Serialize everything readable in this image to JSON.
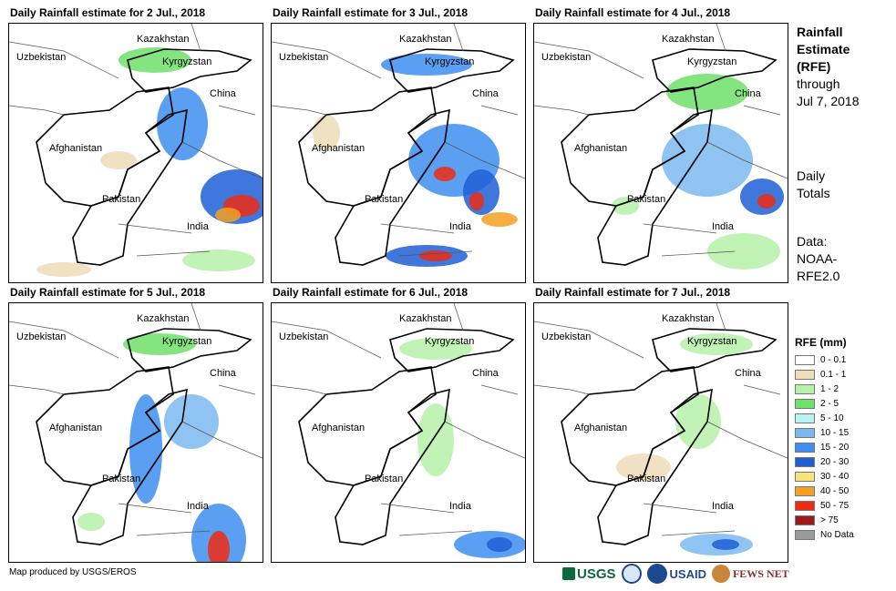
{
  "panels": [
    {
      "title": "Daily Rainfall estimate for 2 Jul., 2018"
    },
    {
      "title": "Daily Rainfall estimate for 3 Jul., 2018"
    },
    {
      "title": "Daily Rainfall estimate for 4 Jul., 2018"
    },
    {
      "title": "Daily Rainfall estimate for 5 Jul., 2018"
    },
    {
      "title": "Daily Rainfall estimate for 6 Jul., 2018"
    },
    {
      "title": "Daily Rainfall estimate for 7 Jul., 2018"
    }
  ],
  "countries": {
    "kazakhstan": "Kazakhstan",
    "uzbekistan": "Uzbekistan",
    "kyrgyzstan": "Kyrgyzstan",
    "china": "China",
    "afghanistan": "Afghanistan",
    "pakistan": "Pakistan",
    "india": "India"
  },
  "side": {
    "title_line1": "Rainfall",
    "title_line2": "Estimate",
    "title_line3": "(RFE)",
    "through": "through",
    "date": "Jul 7, 2018",
    "daily1": "Daily",
    "daily2": "Totals",
    "data1": "Data:",
    "data2": "NOAA-",
    "data3": "RFE2.0"
  },
  "legend": {
    "title": "RFE (mm)",
    "items": [
      {
        "label": "0 - 0.1",
        "color": "#ffffff"
      },
      {
        "label": "0.1 - 1",
        "color": "#efdcb8"
      },
      {
        "label": "1 - 2",
        "color": "#b6f0a9"
      },
      {
        "label": "2 - 5",
        "color": "#6fe06a"
      },
      {
        "label": "5 - 10",
        "color": "#b7f3f5"
      },
      {
        "label": "10 - 15",
        "color": "#7ab8f0"
      },
      {
        "label": "15 - 20",
        "color": "#3d8ef0"
      },
      {
        "label": "20 - 30",
        "color": "#1f5fd6"
      },
      {
        "label": "30 - 40",
        "color": "#f7e37a"
      },
      {
        "label": "40 - 50",
        "color": "#f5a020"
      },
      {
        "label": "50 - 75",
        "color": "#ee2a12"
      },
      {
        "label": "> 75",
        "color": "#9b1b1b"
      },
      {
        "label": "No Data",
        "color": "#9a9a9a"
      }
    ]
  },
  "credit": "Map produced by USGS/EROS",
  "logos": {
    "usgs": "USGS",
    "usaid": "USAID",
    "fews": "FEWS NET"
  }
}
